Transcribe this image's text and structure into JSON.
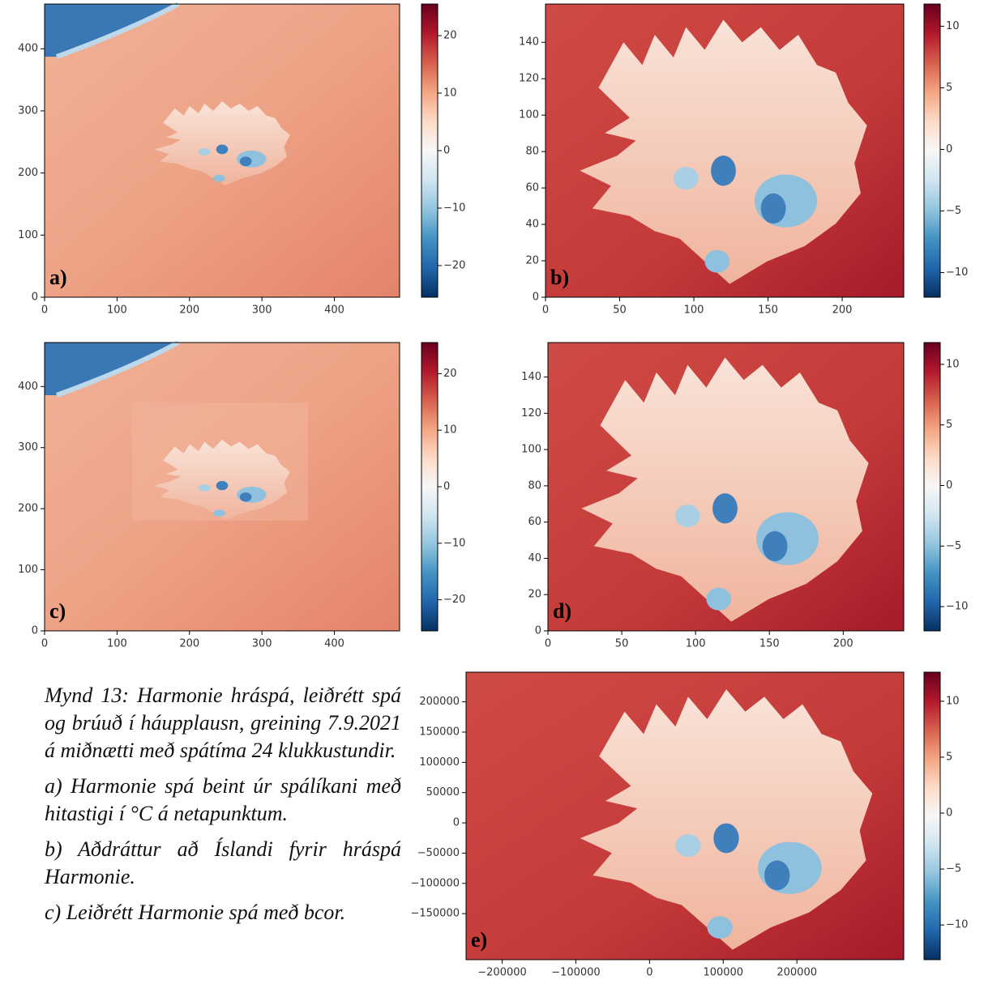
{
  "figure": {
    "panels": [
      {
        "label": "a)",
        "xlim": [
          0,
          490
        ],
        "ylim": [
          0,
          472
        ],
        "xticks": [
          0,
          100,
          200,
          300,
          400
        ],
        "yticks": [
          0,
          100,
          200,
          300,
          400
        ],
        "clim": [
          -25.5,
          25.5
        ],
        "cticks": [
          {
            "value": -20,
            "label": "−20"
          },
          {
            "value": -10,
            "label": "−10"
          },
          0,
          10,
          20
        ]
      },
      {
        "label": "b)",
        "xlim": [
          0,
          241.5
        ],
        "ylim": [
          0,
          161
        ],
        "xticks": [
          0,
          50,
          100,
          150,
          200
        ],
        "yticks": [
          0,
          20,
          40,
          60,
          80,
          100,
          120,
          140
        ],
        "clim": [
          -12,
          11.8
        ],
        "cticks": [
          {
            "value": -10,
            "label": "−10"
          },
          {
            "value": -5,
            "label": "−5"
          },
          0,
          5,
          10
        ]
      },
      {
        "label": "c)",
        "xlim": [
          0,
          490
        ],
        "ylim": [
          0,
          472
        ],
        "xticks": [
          0,
          100,
          200,
          300,
          400
        ],
        "yticks": [
          0,
          100,
          200,
          300,
          400
        ],
        "clim": [
          -25.5,
          25.5
        ],
        "cticks": [
          {
            "value": -20,
            "label": "−20"
          },
          {
            "value": -10,
            "label": "−10"
          },
          0,
          10,
          20
        ]
      },
      {
        "label": "d)",
        "xlim": [
          0,
          241
        ],
        "ylim": [
          0,
          159
        ],
        "xticks": [
          0,
          50,
          100,
          150,
          200
        ],
        "yticks": [
          0,
          20,
          40,
          60,
          80,
          100,
          120,
          140
        ],
        "clim": [
          -12,
          11.8
        ],
        "cticks": [
          {
            "value": -10,
            "label": "−10"
          },
          {
            "value": -5,
            "label": "−5"
          },
          0,
          5,
          10
        ]
      },
      {
        "label": "e)",
        "xlim": [
          -249000,
          345000
        ],
        "ylim": [
          -226000,
          249000
        ],
        "xticks": [
          {
            "value": -200000,
            "label": "−200000"
          },
          {
            "value": -100000,
            "label": "−100000"
          },
          0,
          100000,
          200000
        ],
        "yticks": [
          {
            "value": -150000,
            "label": "−150000"
          },
          {
            "value": -100000,
            "label": "−100000"
          },
          {
            "value": -50000,
            "label": "−50000"
          },
          0,
          50000,
          100000,
          150000,
          200000
        ],
        "clim": [
          -13.1,
          12.6
        ],
        "cticks": [
          {
            "value": -10,
            "label": "−10"
          },
          {
            "value": -5,
            "label": "−5"
          },
          0,
          5,
          10
        ]
      }
    ]
  },
  "caption": {
    "title": "Mynd 13: Harmonie hráspá, leiðrétt spá og brúuð í háupplausn, greining 7.9.2021 á miðnætti með spátíma 24 klukkustundir.",
    "items": [
      "a) Harmonie spá beint úr spálíkani með hitastigi í °C á netapunktum.",
      "b) Aðdráttur að Íslandi fyrir hráspá Harmonie.",
      "c) Leiðrétt Harmonie spá með bcor."
    ]
  }
}
